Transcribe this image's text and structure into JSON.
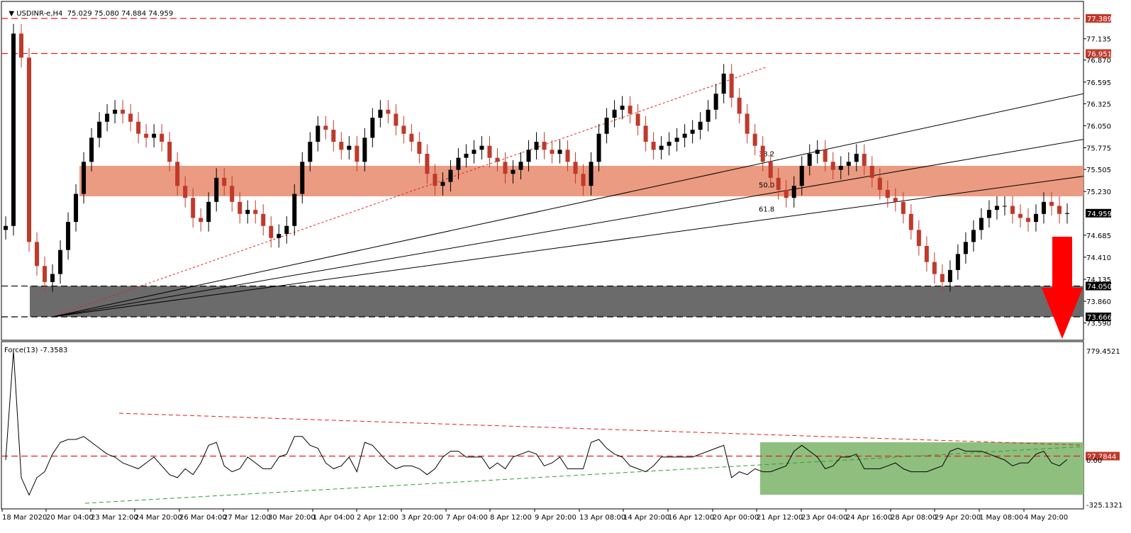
{
  "header": {
    "symbol_line": "USDINR-e,H4  75.029 75.080 74.884 74.959",
    "indicator_line": "Force(13) -7.3583"
  },
  "chart_data": [
    {
      "type": "candlestick",
      "symbol": "USDINR-e",
      "timeframe": "H4",
      "ohlc_last": {
        "open": 75.029,
        "high": 75.08,
        "low": 74.884,
        "close": 74.959
      },
      "price_ticks": [
        "77.135",
        "76.870",
        "76.595",
        "76.325",
        "76.050",
        "75.775",
        "75.505",
        "75.230",
        "74.685",
        "74.410",
        "74.135",
        "73.860",
        "73.590"
      ],
      "marked_prices": [
        {
          "value": "77.389",
          "style": "red-dashed"
        },
        {
          "value": "76.951",
          "style": "red-dashed"
        },
        {
          "value": "74.959",
          "style": "current"
        },
        {
          "value": "74.050",
          "style": "black-dashed"
        },
        {
          "value": "73.666",
          "style": "black-dashed"
        }
      ],
      "resistance_zone": {
        "from": 75.17,
        "to": 75.55,
        "color": "#e9967a"
      },
      "support_zone": {
        "from": 73.666,
        "to": 74.05,
        "color": "#6b6b6b"
      },
      "fib_fan_labels": [
        "38.2",
        "50.0",
        "61.8"
      ],
      "x_labels": [
        "18 Mar 2020",
        "20 Mar 04:00",
        "23 Mar 12:00",
        "24 Mar 20:00",
        "26 Mar 04:00",
        "27 Mar 12:00",
        "30 Mar 20:00",
        "1 Apr 04:00",
        "2 Apr 12:00",
        "3 Apr 20:00",
        "7 Apr 04:00",
        "8 Apr 12:00",
        "9 Apr 20:00",
        "13 Apr 08:00",
        "14 Apr 20:00",
        "16 Apr 12:00",
        "20 Apr 00:00",
        "21 Apr 12:00",
        "23 Apr 04:00",
        "24 Apr 16:00",
        "28 Apr 08:00",
        "29 Apr 20:00",
        "1 May 08:00",
        "4 May 20:00"
      ],
      "closes": [
        74.8,
        77.2,
        76.9,
        74.6,
        74.3,
        74.1,
        74.2,
        74.5,
        74.85,
        75.2,
        75.6,
        75.9,
        76.1,
        76.2,
        76.25,
        76.2,
        76.1,
        75.95,
        75.9,
        75.95,
        75.85,
        75.6,
        75.3,
        75.15,
        74.9,
        74.85,
        75.1,
        75.4,
        75.3,
        75.1,
        74.95,
        75.0,
        74.95,
        74.8,
        74.65,
        74.7,
        74.8,
        75.2,
        75.6,
        75.85,
        76.05,
        76.0,
        75.85,
        75.75,
        75.8,
        75.6,
        75.9,
        76.15,
        76.25,
        76.2,
        76.05,
        75.95,
        75.85,
        75.7,
        75.45,
        75.3,
        75.35,
        75.5,
        75.65,
        75.7,
        75.75,
        75.8,
        75.65,
        75.6,
        75.45,
        75.5,
        75.6,
        75.75,
        75.85,
        75.75,
        75.7,
        75.75,
        75.6,
        75.45,
        75.3,
        75.6,
        75.95,
        76.15,
        76.25,
        76.3,
        76.2,
        76.05,
        75.85,
        75.75,
        75.8,
        75.85,
        75.9,
        75.95,
        76.0,
        76.1,
        76.25,
        76.45,
        76.7,
        76.4,
        76.2,
        75.95,
        75.8,
        75.6,
        75.4,
        75.25,
        75.15,
        75.3,
        75.55,
        75.7,
        75.75,
        75.6,
        75.5,
        75.55,
        75.6,
        75.7,
        75.55,
        75.4,
        75.25,
        75.15,
        75.1,
        74.95,
        74.75,
        74.55,
        74.35,
        74.2,
        74.1,
        74.25,
        74.45,
        74.6,
        74.75,
        74.9,
        75.0,
        75.05,
        75.05,
        74.95,
        74.9,
        74.85,
        74.95,
        75.1,
        75.05,
        74.95,
        74.96
      ],
      "force_ticks": [
        "779.4521",
        "27.7844",
        "0.00",
        "-325.1321"
      ],
      "force_zone_color": "#8fbf7f"
    }
  ]
}
